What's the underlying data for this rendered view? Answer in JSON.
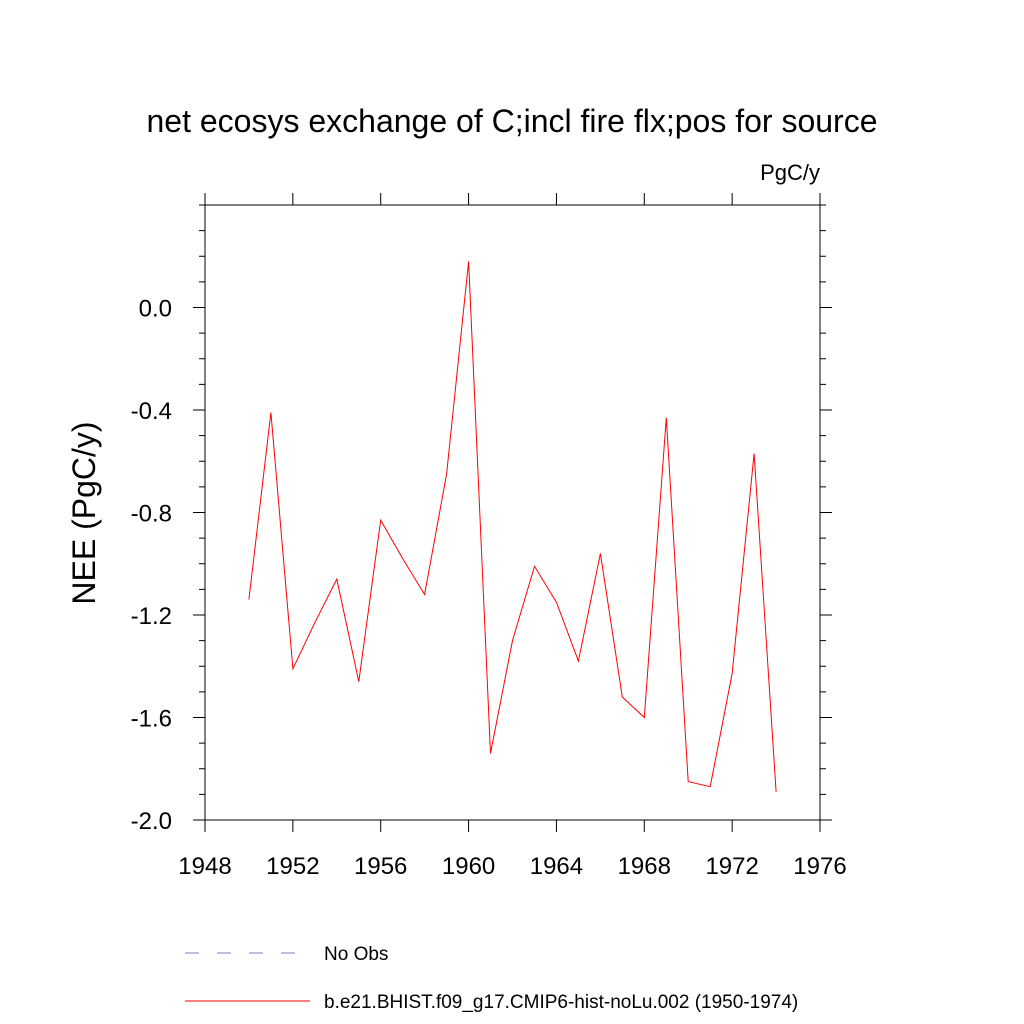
{
  "chart_data": {
    "type": "line",
    "title": "net ecosys exchange of C;incl fire flx;pos for source",
    "units_label": "PgC/y",
    "ylabel": "NEE  (PgC/y)",
    "xlabel": "",
    "xlim": [
      1948,
      1976
    ],
    "ylim": [
      -2.0,
      0.4
    ],
    "x_ticks": [
      1948,
      1952,
      1956,
      1960,
      1964,
      1968,
      1972,
      1976
    ],
    "x_tick_labels": [
      "1948",
      "1952",
      "1956",
      "1960",
      "1964",
      "1968",
      "1972",
      "1976"
    ],
    "y_ticks": [
      -2.0,
      -1.6,
      -1.2,
      -0.8,
      -0.4,
      0.0
    ],
    "y_tick_labels": [
      "-2.0",
      "-1.6",
      "-1.2",
      "-0.8",
      "-0.4",
      "0.0"
    ],
    "grid": false,
    "legend_position": "bottom",
    "x": [
      1950,
      1951,
      1952,
      1953,
      1954,
      1955,
      1956,
      1957,
      1958,
      1959,
      1960,
      1961,
      1962,
      1963,
      1964,
      1965,
      1966,
      1967,
      1968,
      1969,
      1970,
      1971,
      1972,
      1973,
      1974
    ],
    "series": [
      {
        "name": "b.e21.BHIST.f09_g17.CMIP6-hist-noLu.002 (1950-1974)",
        "color": "#ff0000",
        "dash": "solid",
        "values": [
          -1.14,
          -0.41,
          -1.41,
          -1.23,
          -1.06,
          -1.46,
          -0.83,
          -0.98,
          -1.12,
          -0.65,
          0.18,
          -1.74,
          -1.3,
          -1.01,
          -1.15,
          -1.38,
          -0.96,
          -1.52,
          -1.6,
          -0.43,
          -1.85,
          -1.87,
          -1.43,
          -0.57,
          -1.89
        ]
      }
    ],
    "legend": [
      {
        "label": "No Obs",
        "color": "#8080c0",
        "dash": "dashed"
      },
      {
        "label": "b.e21.BHIST.f09_g17.CMIP6-hist-noLu.002 (1950-1974)",
        "color": "#ff0000",
        "dash": "solid"
      }
    ]
  }
}
